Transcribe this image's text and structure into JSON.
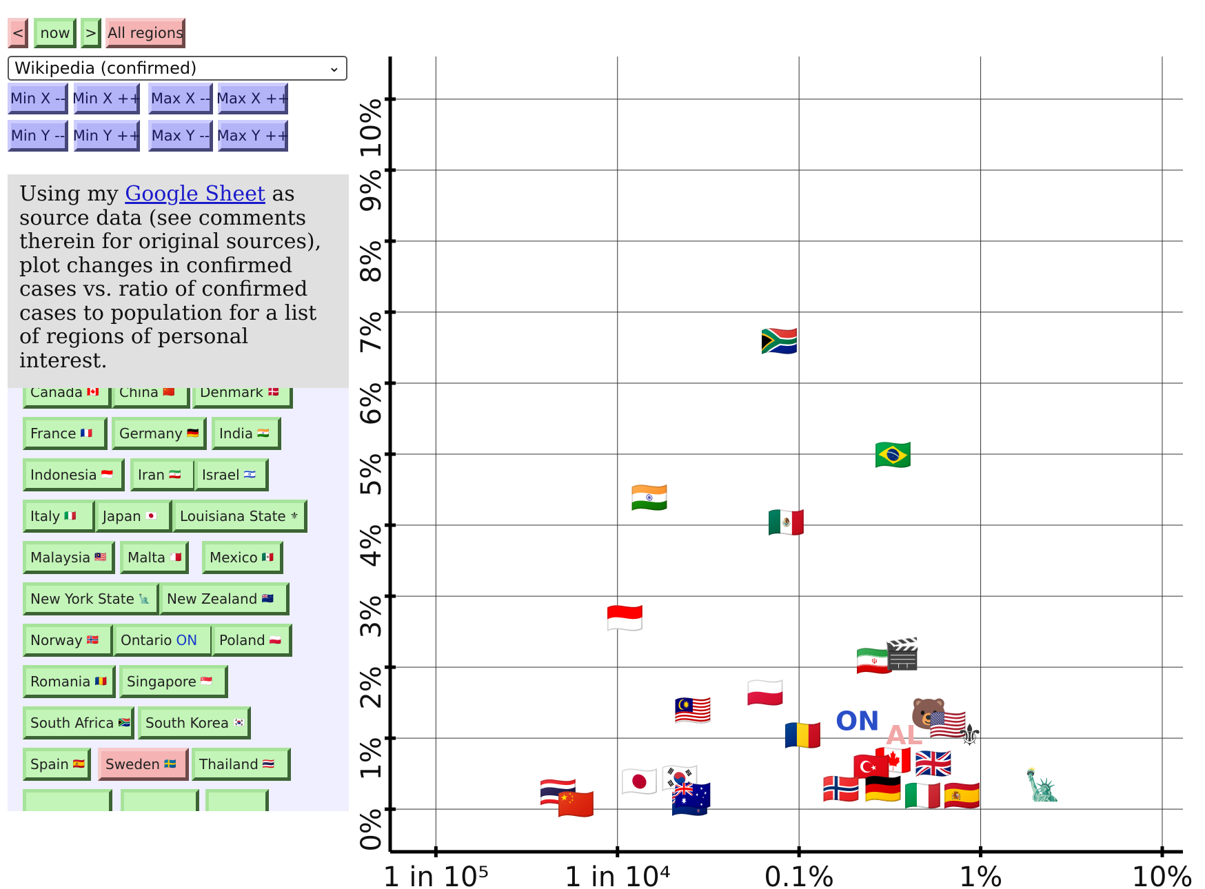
{
  "nav": {
    "prev_label": "<",
    "now_label": "now",
    "next_label": ">",
    "all_regions_label": "All regions"
  },
  "dataset_select": {
    "value": "Wikipedia (confirmed)"
  },
  "axis_buttons": [
    "Min X --",
    "Min X ++",
    "Max X --",
    "Max X ++",
    "Min Y --",
    "Min Y ++",
    "Max Y --",
    "Max Y ++"
  ],
  "intro": {
    "before_link": "Using my ",
    "link_text": "Google Sheet",
    "after_link": " as source data (see comments therein for original sources), plot changes in confirmed cases vs. ratio of confirmed cases to population for a list of regions of personal interest."
  },
  "regions": [
    {
      "label": "Canada",
      "flag": "🇨🇦"
    },
    {
      "label": "China",
      "flag": "🇨🇳"
    },
    {
      "label": "Denmark",
      "flag": "🇩🇰"
    },
    {
      "label": "France",
      "flag": "🇫🇷"
    },
    {
      "label": "Germany",
      "flag": "🇩🇪"
    },
    {
      "label": "India",
      "flag": "🇮🇳"
    },
    {
      "label": "Indonesia",
      "flag": "🇮🇩"
    },
    {
      "label": "Iran",
      "flag": "🇮🇷"
    },
    {
      "label": "Israel",
      "flag": "🇮🇱"
    },
    {
      "label": "Italy",
      "flag": "🇮🇹"
    },
    {
      "label": "Japan",
      "flag": "🇯🇵"
    },
    {
      "label": "Louisiana State",
      "flag": "⚜"
    },
    {
      "label": "Malaysia",
      "flag": "🇲🇾"
    },
    {
      "label": "Malta",
      "flag": "🇲🇹"
    },
    {
      "label": "Mexico",
      "flag": "🇲🇽"
    },
    {
      "label": "New York State",
      "flag": "🗽"
    },
    {
      "label": "New Zealand",
      "flag": "🇳🇿"
    },
    {
      "label": "Norway",
      "flag": "🇳🇴"
    },
    {
      "label": "Ontario",
      "flag": "ON"
    },
    {
      "label": "Poland",
      "flag": "🇵🇱"
    },
    {
      "label": "Romania",
      "flag": "🇷🇴"
    },
    {
      "label": "Singapore",
      "flag": "🇸🇬"
    },
    {
      "label": "South Africa",
      "flag": "🇿🇦"
    },
    {
      "label": "South Korea",
      "flag": "🇰🇷"
    },
    {
      "label": "Spain",
      "flag": "🇪🇸"
    },
    {
      "label": "Sweden",
      "flag": "🇸🇪",
      "selected": true
    },
    {
      "label": "Thailand",
      "flag": "🇹🇭"
    }
  ],
  "chart_data": {
    "type": "scatter",
    "x_scale": "log",
    "xlabel": "",
    "ylabel": "",
    "x_ticks": [
      {
        "value": 1e-05,
        "label": "1 in 10⁵"
      },
      {
        "value": 0.0001,
        "label": "1 in 10⁴"
      },
      {
        "value": 0.001,
        "label": "0.1%"
      },
      {
        "value": 0.01,
        "label": "1%"
      },
      {
        "value": 0.1,
        "label": "10%"
      }
    ],
    "y_ticks": [
      {
        "value": 0,
        "label": "0%"
      },
      {
        "value": 1,
        "label": "1%"
      },
      {
        "value": 2,
        "label": "2%"
      },
      {
        "value": 3,
        "label": "3%"
      },
      {
        "value": 4,
        "label": "4%"
      },
      {
        "value": 5,
        "label": "5%"
      },
      {
        "value": 6,
        "label": "6%"
      },
      {
        "value": 7,
        "label": "7%"
      },
      {
        "value": 8,
        "label": "8%"
      },
      {
        "value": 9,
        "label": "9%"
      },
      {
        "value": 10,
        "label": "10%"
      }
    ],
    "xlim": [
      5.6e-06,
      0.13
    ],
    "ylim": [
      -0.6,
      10.6
    ],
    "grid": true,
    "points": [
      {
        "name": "South Africa",
        "marker": "🇿🇦",
        "x": 0.00078,
        "y": 6.6
      },
      {
        "name": "Brazil",
        "marker": "🇧🇷",
        "x": 0.0033,
        "y": 5.0
      },
      {
        "name": "India",
        "marker": "🇮🇳",
        "x": 0.00015,
        "y": 4.4
      },
      {
        "name": "Mexico",
        "marker": "🇲🇽",
        "x": 0.00085,
        "y": 4.05
      },
      {
        "name": "Indonesia",
        "marker": "🇮🇩",
        "x": 0.00011,
        "y": 2.7
      },
      {
        "name": "Malaysia",
        "marker": "🇲🇾",
        "x": 0.00026,
        "y": 1.4
      },
      {
        "name": "Poland",
        "marker": "🇵🇱",
        "x": 0.00065,
        "y": 1.65
      },
      {
        "name": "Iran",
        "marker": "🇮🇷",
        "x": 0.0026,
        "y": 2.1
      },
      {
        "name": "Los Angeles",
        "marker": "🎬",
        "x": 0.0037,
        "y": 2.2
      },
      {
        "name": "Romania",
        "marker": "🇷🇴",
        "x": 0.00105,
        "y": 1.05
      },
      {
        "name": "Ontario",
        "marker": "ON",
        "x": 0.0021,
        "y": 1.25
      },
      {
        "name": "California",
        "marker": "🐻",
        "x": 0.0052,
        "y": 1.35
      },
      {
        "name": "Alabama",
        "marker": "AL",
        "x": 0.0038,
        "y": 1.05
      },
      {
        "name": "United States",
        "marker": "🇺🇸",
        "x": 0.0066,
        "y": 1.2
      },
      {
        "name": "Louisiana State",
        "marker": "⚜",
        "x": 0.0087,
        "y": 1.05
      },
      {
        "name": "Canada",
        "marker": "🇨🇦",
        "x": 0.0033,
        "y": 0.7
      },
      {
        "name": "Turkey",
        "marker": "🇹🇷",
        "x": 0.0025,
        "y": 0.6
      },
      {
        "name": "United Kingdom",
        "marker": "🇬🇧",
        "x": 0.0055,
        "y": 0.65
      },
      {
        "name": "Norway",
        "marker": "🇳🇴",
        "x": 0.0017,
        "y": 0.3
      },
      {
        "name": "Germany",
        "marker": "🇩🇪",
        "x": 0.0029,
        "y": 0.3
      },
      {
        "name": "Italy",
        "marker": "🇮🇹",
        "x": 0.0048,
        "y": 0.2
      },
      {
        "name": "Spain",
        "marker": "🇪🇸",
        "x": 0.0079,
        "y": 0.2
      },
      {
        "name": "New York State",
        "marker": "🗽",
        "x": 0.022,
        "y": 0.35
      },
      {
        "name": "Thailand",
        "marker": "🇹🇭",
        "x": 4.7e-05,
        "y": 0.25
      },
      {
        "name": "China",
        "marker": "🇨🇳",
        "x": 5.9e-05,
        "y": 0.08
      },
      {
        "name": "Japan",
        "marker": "🇯🇵",
        "x": 0.000132,
        "y": 0.4
      },
      {
        "name": "South Korea",
        "marker": "🇰🇷",
        "x": 0.00022,
        "y": 0.45
      },
      {
        "name": "New Zealand",
        "marker": "🇳🇿",
        "x": 0.00025,
        "y": 0.1
      },
      {
        "name": "Australia",
        "marker": "🇦🇺",
        "x": 0.00026,
        "y": 0.2
      }
    ]
  }
}
